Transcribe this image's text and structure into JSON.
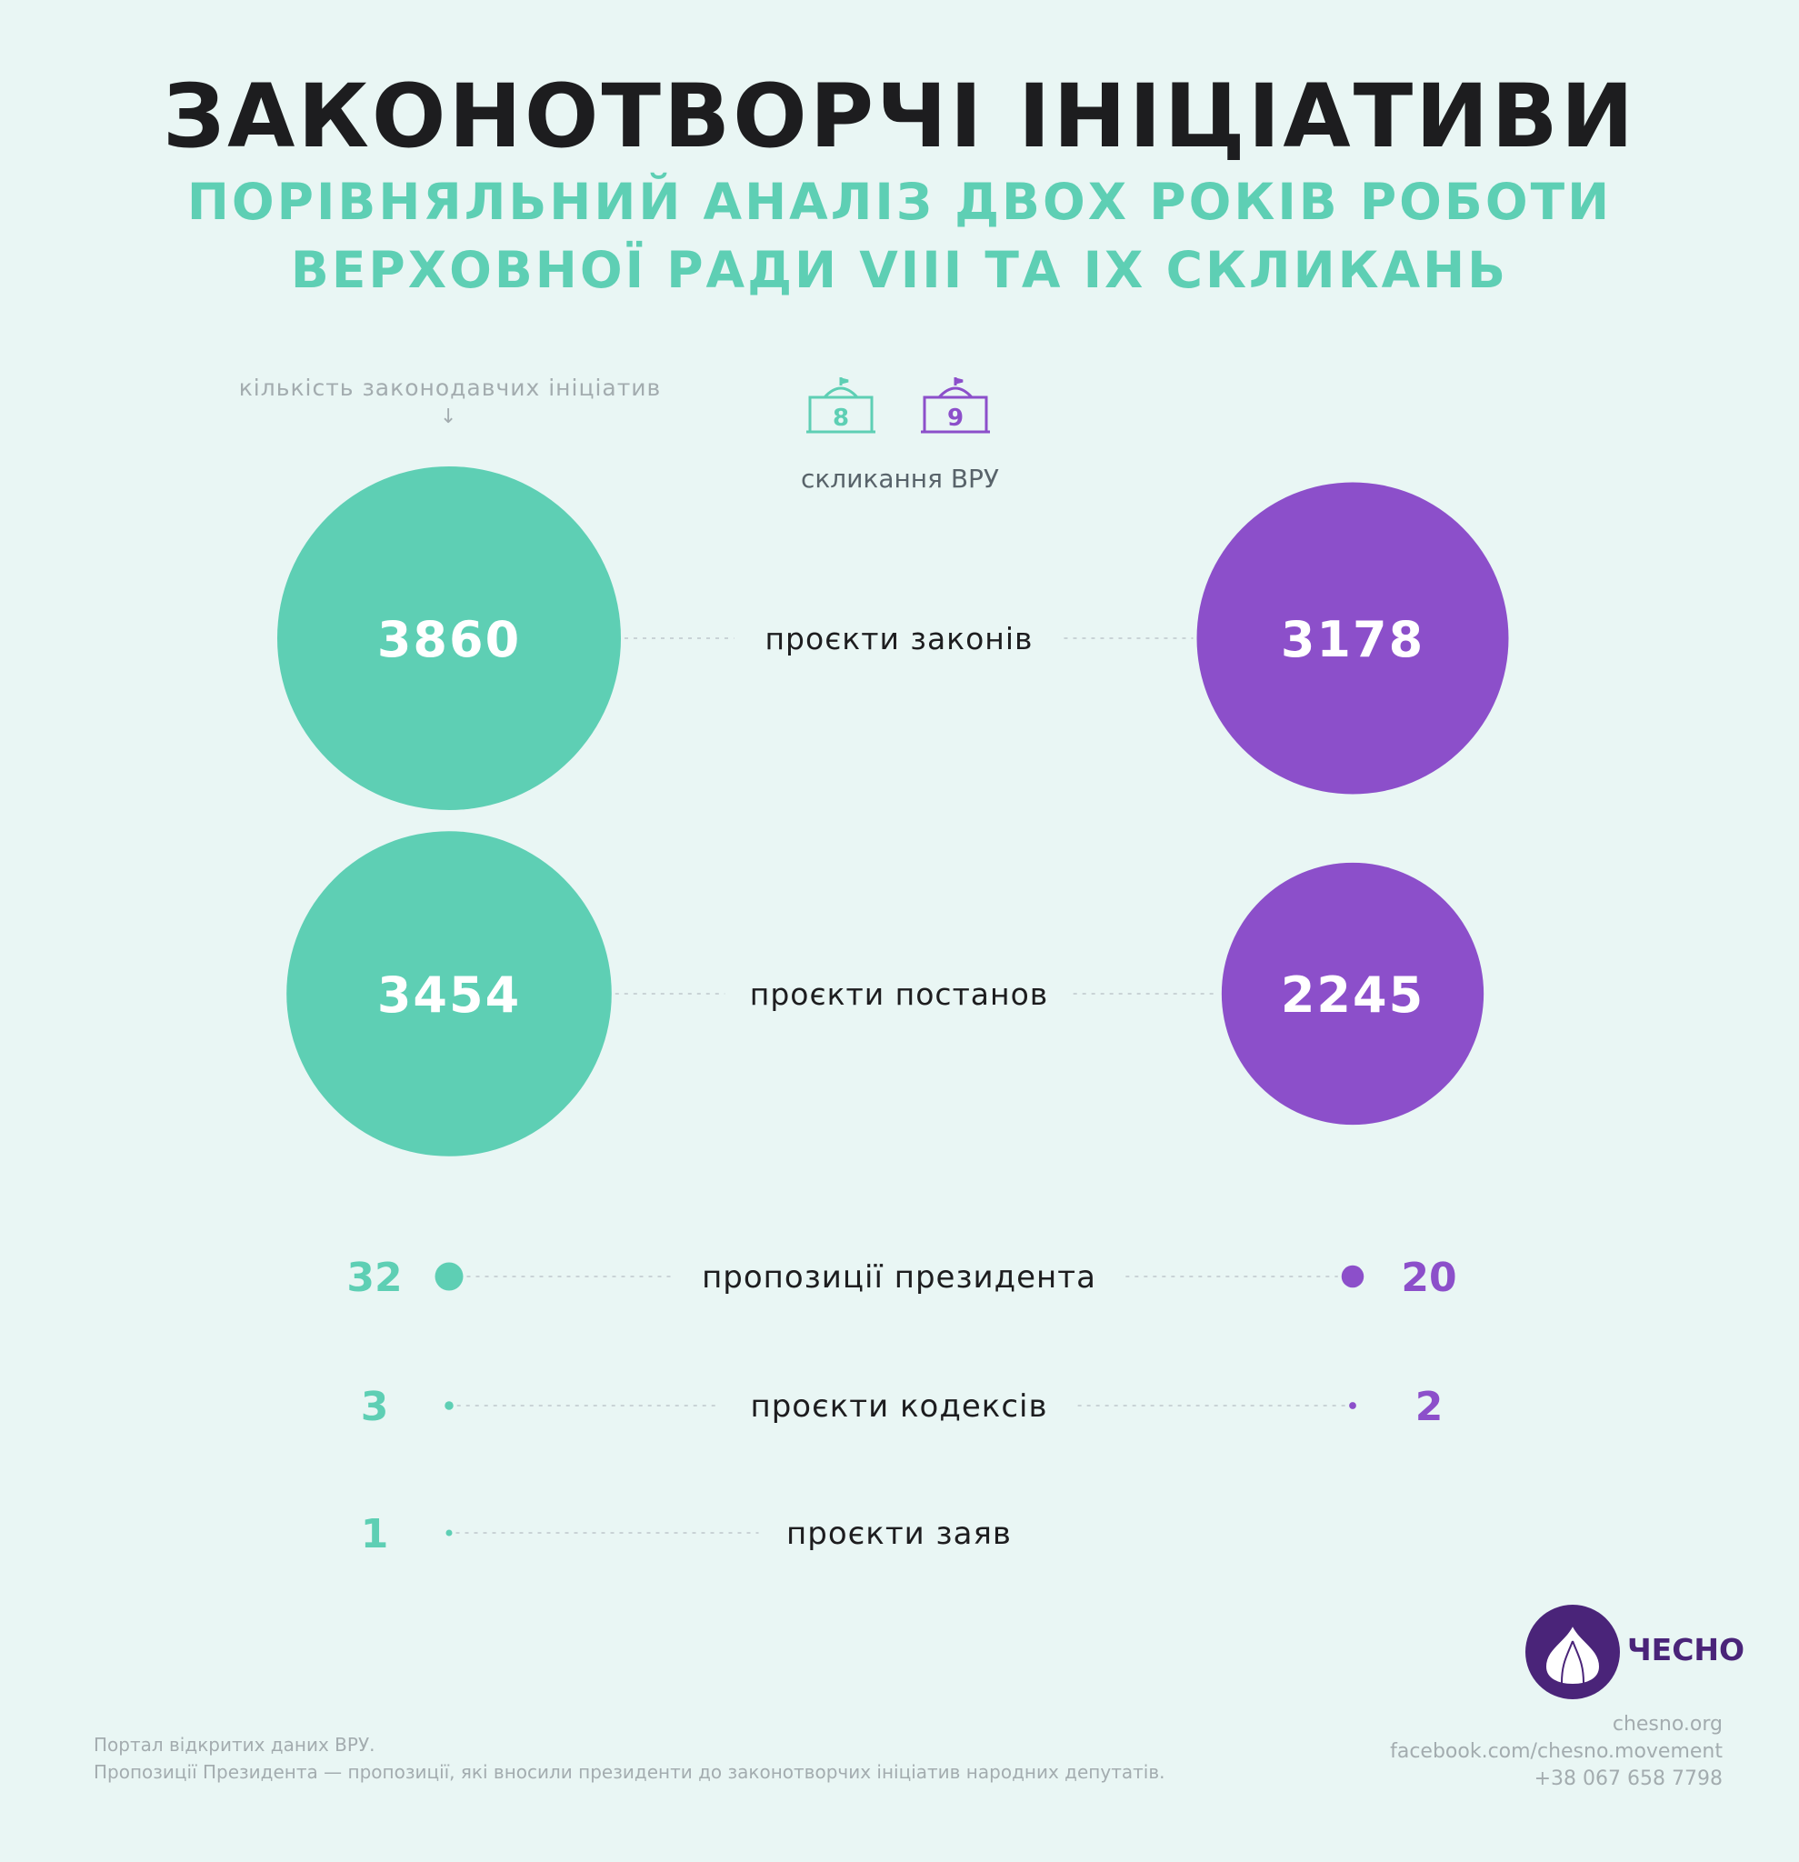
{
  "header": {
    "title": "ЗАКОНОТВОРЧІ ІНІЦІАТИВИ",
    "subtitle_line1": "ПОРІВНЯЛЬНИЙ АНАЛІЗ ДВОХ РОКІВ РОБОТИ",
    "subtitle_line2": "ВЕРХОВНОЇ РАДИ VIII ТА IX СКЛИКАНЬ"
  },
  "axis_note": "кількість законодавчих ініціатив",
  "legend": {
    "label": "скликання ВРУ",
    "items": [
      {
        "number": "8",
        "color": "#5ecfb4"
      },
      {
        "number": "9",
        "color": "#8c4fca"
      }
    ]
  },
  "colors": {
    "convocation_8": "#5ecfb4",
    "convocation_9": "#8c4fca",
    "dots": "#c9d3d6",
    "text": "#1d1d1f"
  },
  "chart_data": {
    "type": "bubble-comparison",
    "categories": [
      "проєкти законів",
      "проєкти постанов",
      "пропозиції президента",
      "проєкти кодексів",
      "проєкти заяв"
    ],
    "series": [
      {
        "name": "8",
        "values": [
          3860,
          3454,
          32,
          3,
          1
        ]
      },
      {
        "name": "9",
        "values": [
          3178,
          2245,
          20,
          2,
          null
        ]
      }
    ]
  },
  "branding": {
    "logo_text": "ЧЕСНО",
    "contacts": [
      "chesno.org",
      "facebook.com/chesno.movement",
      "+38 067 658 7798"
    ]
  },
  "footer": {
    "line1": "Портал відкритих даних ВРУ.",
    "line2": "Пропозиції Президента — пропозиції, які вносили президенти до законотворчих ініціатив народних депутатів."
  }
}
